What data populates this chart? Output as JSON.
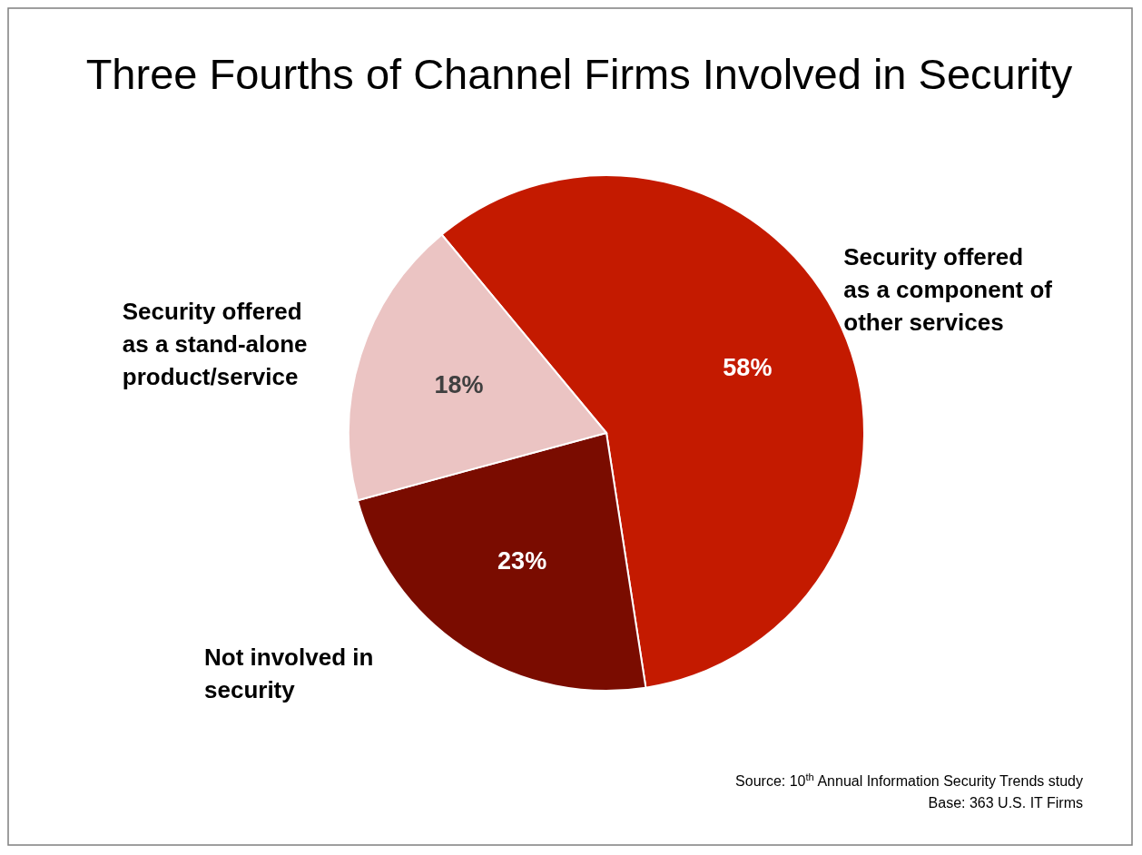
{
  "chart_data": {
    "type": "pie",
    "title": "Three Fourths of Channel Firms Involved in Security",
    "categories": [
      "Security offered as a component of other services",
      "Not involved in security",
      "Security offered as a stand-alone product/service"
    ],
    "values": [
      58,
      23,
      18
    ],
    "colors": [
      "#c41a00",
      "#7a0c00",
      "#ebc4c3"
    ],
    "value_labels": [
      "58%",
      "23%",
      "18%"
    ],
    "annotations": [
      "Source: 10$^{th}$ Annual Information Security Trends study",
      "Base: 363 U.S. IT Firms"
    ]
  }
}
